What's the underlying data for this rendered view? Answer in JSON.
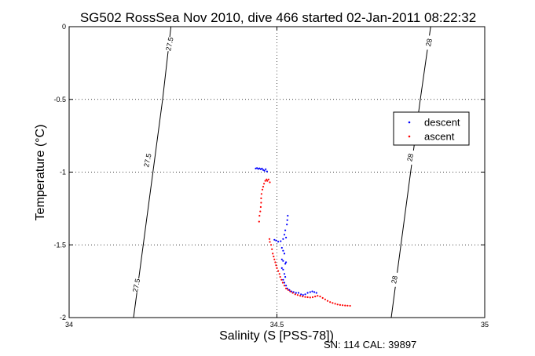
{
  "chart_data": {
    "type": "scatter",
    "title": "SG502 RossSea Nov 2010, dive 466 started 02-Jan-2011 08:22:32",
    "xlabel": "Salinity (S [PSS-78])",
    "ylabel": "Temperature (°C)",
    "xlim": [
      34,
      35
    ],
    "ylim": [
      -2,
      0
    ],
    "xticks": [
      34,
      34.5,
      35
    ],
    "xtick_labels": [
      "34",
      "34.5",
      "35"
    ],
    "yticks": [
      0,
      -0.5,
      -1,
      -1.5,
      -2
    ],
    "ytick_labels": [
      "0",
      "-0.5",
      "-1",
      "-1.5",
      "-2"
    ],
    "grid": true,
    "legend_position": "right",
    "footer": "SN: 114  CAL: 39897",
    "density_contours": [
      {
        "label": "27.5",
        "points": [
          [
            34.155,
            -2.0
          ],
          [
            34.225,
            -0.5
          ],
          [
            34.245,
            0.0
          ]
        ]
      },
      {
        "label": "28",
        "points": [
          [
            34.775,
            -2.0
          ],
          [
            34.845,
            -0.5
          ],
          [
            34.87,
            0.0
          ]
        ]
      }
    ],
    "contour_labels": [
      {
        "text": "27.5",
        "x": 34.243,
        "y": -0.12
      },
      {
        "text": "27.5",
        "x": 34.19,
        "y": -0.92
      },
      {
        "text": "27.5",
        "x": 34.163,
        "y": -1.78
      },
      {
        "text": "28",
        "x": 34.867,
        "y": -0.11
      },
      {
        "text": "28",
        "x": 34.822,
        "y": -0.9
      },
      {
        "text": "28",
        "x": 34.784,
        "y": -1.74
      }
    ],
    "series": [
      {
        "name": "descent",
        "color": "#0000ff",
        "points": [
          [
            34.449,
            -0.975
          ],
          [
            34.452,
            -0.972
          ],
          [
            34.455,
            -0.978
          ],
          [
            34.458,
            -0.974
          ],
          [
            34.461,
            -0.98
          ],
          [
            34.464,
            -0.976
          ],
          [
            34.467,
            -0.985
          ],
          [
            34.47,
            -0.99
          ],
          [
            34.473,
            -0.98
          ],
          [
            34.476,
            -0.995
          ],
          [
            34.526,
            -1.3
          ],
          [
            34.525,
            -1.33
          ],
          [
            34.524,
            -1.36
          ],
          [
            34.52,
            -1.4
          ],
          [
            34.518,
            -1.43
          ],
          [
            34.522,
            -1.45
          ],
          [
            34.515,
            -1.46
          ],
          [
            34.509,
            -1.475
          ],
          [
            34.503,
            -1.478
          ],
          [
            34.498,
            -1.47
          ],
          [
            34.494,
            -1.465
          ],
          [
            34.512,
            -1.52
          ],
          [
            34.515,
            -1.54
          ],
          [
            34.518,
            -1.56
          ],
          [
            34.512,
            -1.6
          ],
          [
            34.515,
            -1.61
          ],
          [
            34.52,
            -1.63
          ],
          [
            34.522,
            -1.62
          ],
          [
            34.512,
            -1.66
          ],
          [
            34.515,
            -1.67
          ],
          [
            34.518,
            -1.7
          ],
          [
            34.52,
            -1.72
          ],
          [
            34.515,
            -1.74
          ],
          [
            34.518,
            -1.76
          ],
          [
            34.522,
            -1.78
          ],
          [
            34.525,
            -1.8
          ],
          [
            34.53,
            -1.81
          ],
          [
            34.535,
            -1.82
          ],
          [
            34.54,
            -1.825
          ],
          [
            34.546,
            -1.83
          ],
          [
            34.552,
            -1.83
          ],
          [
            34.558,
            -1.84
          ],
          [
            34.563,
            -1.845
          ],
          [
            34.568,
            -1.84
          ],
          [
            34.574,
            -1.83
          ],
          [
            34.58,
            -1.825
          ],
          [
            34.585,
            -1.82
          ],
          [
            34.59,
            -1.825
          ],
          [
            34.595,
            -1.83
          ]
        ]
      },
      {
        "name": "ascent",
        "color": "#ff0000",
        "points": [
          [
            34.457,
            -1.34
          ],
          [
            34.458,
            -1.3
          ],
          [
            34.46,
            -1.27
          ],
          [
            34.461,
            -1.24
          ],
          [
            34.462,
            -1.21
          ],
          [
            34.462,
            -1.18
          ],
          [
            34.463,
            -1.15
          ],
          [
            34.465,
            -1.12
          ],
          [
            34.467,
            -1.1
          ],
          [
            34.469,
            -1.08
          ],
          [
            34.472,
            -1.06
          ],
          [
            34.475,
            -1.05
          ],
          [
            34.477,
            -1.06
          ],
          [
            34.48,
            -1.05
          ],
          [
            34.483,
            -1.07
          ],
          [
            34.482,
            -1.46
          ],
          [
            34.483,
            -1.48
          ],
          [
            34.486,
            -1.5
          ],
          [
            34.488,
            -1.53
          ],
          [
            34.49,
            -1.56
          ],
          [
            34.492,
            -1.58
          ],
          [
            34.494,
            -1.6
          ],
          [
            34.496,
            -1.62
          ],
          [
            34.498,
            -1.64
          ],
          [
            34.5,
            -1.66
          ],
          [
            34.503,
            -1.68
          ],
          [
            34.506,
            -1.7
          ],
          [
            34.508,
            -1.72
          ],
          [
            34.511,
            -1.74
          ],
          [
            34.514,
            -1.76
          ],
          [
            34.518,
            -1.78
          ],
          [
            34.522,
            -1.8
          ],
          [
            34.527,
            -1.81
          ],
          [
            34.532,
            -1.82
          ],
          [
            34.538,
            -1.83
          ],
          [
            34.544,
            -1.84
          ],
          [
            34.55,
            -1.845
          ],
          [
            34.556,
            -1.85
          ],
          [
            34.562,
            -1.855
          ],
          [
            34.568,
            -1.858
          ],
          [
            34.574,
            -1.86
          ],
          [
            34.58,
            -1.862
          ],
          [
            34.586,
            -1.86
          ],
          [
            34.592,
            -1.855
          ],
          [
            34.598,
            -1.85
          ],
          [
            34.604,
            -1.855
          ],
          [
            34.61,
            -1.865
          ],
          [
            34.616,
            -1.875
          ],
          [
            34.622,
            -1.885
          ],
          [
            34.628,
            -1.893
          ],
          [
            34.634,
            -1.9
          ],
          [
            34.64,
            -1.905
          ],
          [
            34.646,
            -1.91
          ],
          [
            34.652,
            -1.913
          ],
          [
            34.658,
            -1.915
          ],
          [
            34.664,
            -1.917
          ],
          [
            34.67,
            -1.918
          ],
          [
            34.676,
            -1.919
          ]
        ]
      }
    ]
  }
}
